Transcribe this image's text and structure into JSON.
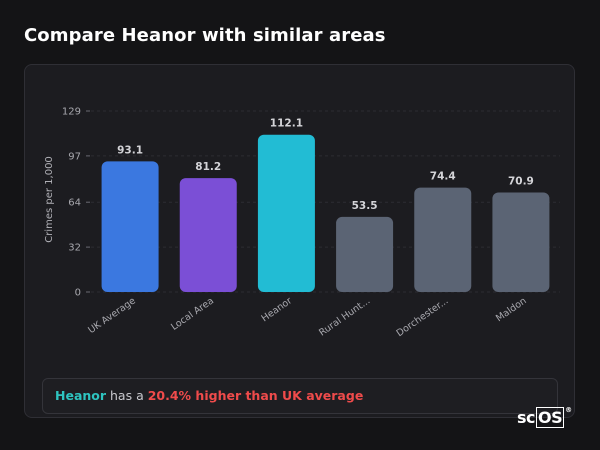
{
  "page": {
    "title": "Compare Heanor with similar areas"
  },
  "chart_data": {
    "type": "bar",
    "ylabel": "Crimes per 1,000",
    "ylim": [
      0,
      129
    ],
    "yticks": [
      0,
      32,
      64,
      97,
      129
    ],
    "categories": [
      "UK Average",
      "Local Area",
      "Heanor",
      "Rural Hunt...",
      "Dorchester...",
      "Maldon"
    ],
    "values": [
      93.1,
      81.2,
      112.1,
      53.5,
      74.4,
      70.9
    ],
    "value_labels": [
      "93.1",
      "81.2",
      "112.1",
      "53.5",
      "74.4",
      "70.9"
    ],
    "colors": [
      "#3b78e0",
      "#7b4fd6",
      "#22bcd4",
      "#5b6474",
      "#5b6474",
      "#5b6474"
    ],
    "grid": true
  },
  "summary": {
    "area": "Heanor",
    "middle": " has a ",
    "stat": "20.4% higher than UK average"
  },
  "logo": {
    "main": "sc",
    "boxed": "OS",
    "mark": "®"
  }
}
